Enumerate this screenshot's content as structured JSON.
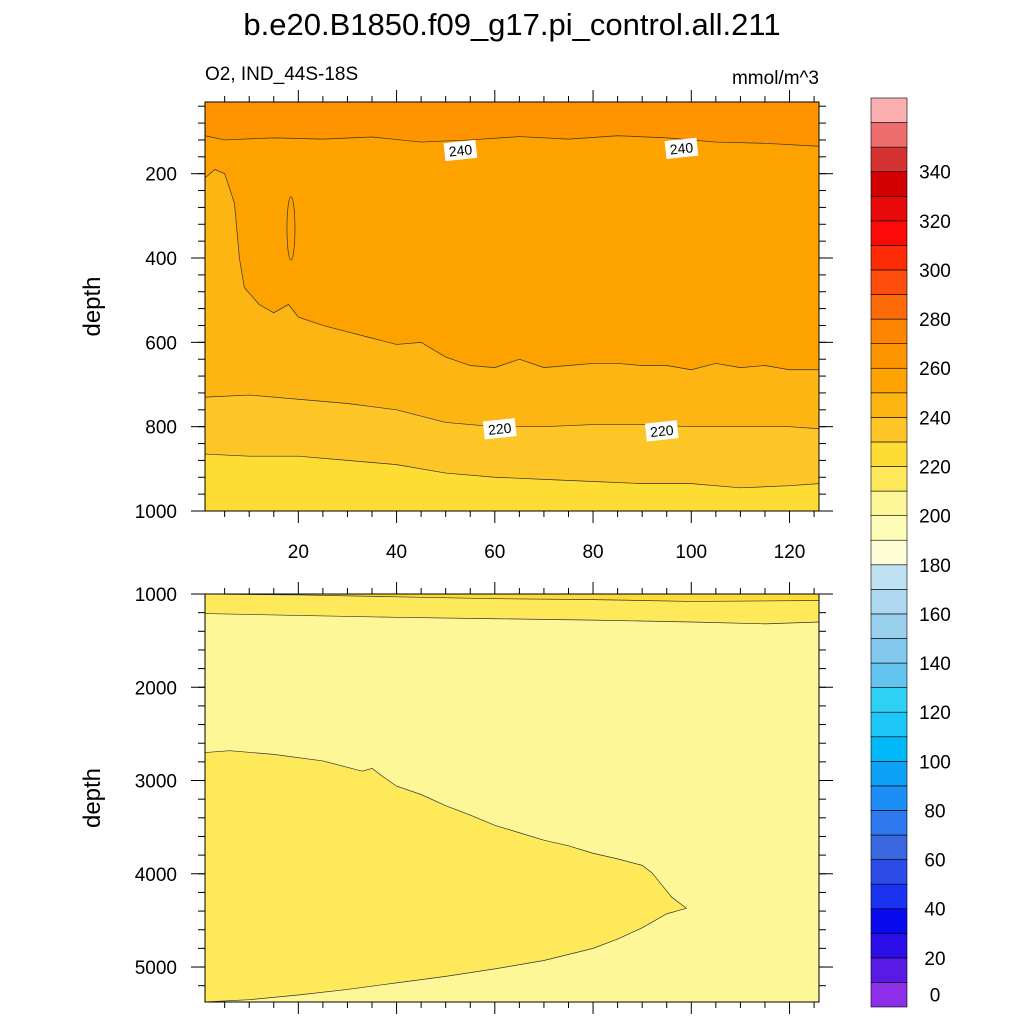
{
  "title": "b.e20.B1850.f09_g17.pi_control.all.211",
  "variable_label": "O2, IND_44S-18S",
  "units": "mmol/m^3",
  "chart_data": [
    {
      "type": "contour",
      "panel": "upper",
      "ylabel": "depth",
      "xlim": [
        1,
        126
      ],
      "ylim": [
        1000,
        30
      ],
      "y_reversed": true,
      "x_ticks": [
        20,
        40,
        60,
        80,
        100,
        120
      ],
      "y_ticks": [
        200,
        400,
        600,
        800,
        1000
      ],
      "regions": [
        {
          "range": "240-250",
          "color": "#FD9400"
        },
        {
          "range": "230-240",
          "color": "#FEA200"
        },
        {
          "range": "220-230",
          "color": "#FDB514"
        },
        {
          "range": "210-220",
          "color": "#FDC626"
        },
        {
          "range": "200-210",
          "color": "#FDDC33"
        }
      ],
      "contours": [
        {
          "level": 240,
          "x": [
            1,
            5,
            15,
            25,
            35,
            45,
            55,
            65,
            75,
            85,
            95,
            105,
            115,
            126
          ],
          "y": [
            110,
            120,
            115,
            118,
            113,
            125,
            120,
            112,
            118,
            110,
            115,
            125,
            128,
            135
          ]
        },
        {
          "level": 230,
          "x": [
            1,
            3,
            5,
            7,
            8,
            9,
            12,
            15,
            18,
            20,
            25,
            30,
            35,
            40,
            45,
            50,
            55,
            60,
            65,
            70,
            75,
            80,
            85,
            90,
            95,
            100,
            105,
            110,
            115,
            120,
            126
          ],
          "y": [
            210,
            190,
            200,
            270,
            400,
            470,
            510,
            530,
            510,
            540,
            560,
            575,
            590,
            605,
            600,
            635,
            655,
            660,
            640,
            660,
            655,
            650,
            650,
            655,
            655,
            665,
            650,
            660,
            655,
            665,
            665
          ]
        },
        {
          "level": 220,
          "x": [
            1,
            10,
            20,
            30,
            40,
            50,
            60,
            70,
            80,
            90,
            100,
            110,
            120,
            126
          ],
          "y": [
            730,
            725,
            735,
            745,
            760,
            790,
            800,
            800,
            795,
            795,
            800,
            800,
            800,
            805
          ]
        },
        {
          "level": 210,
          "x": [
            1,
            10,
            20,
            30,
            40,
            50,
            60,
            70,
            80,
            90,
            100,
            110,
            120,
            126
          ],
          "y": [
            865,
            870,
            870,
            880,
            890,
            910,
            920,
            925,
            930,
            935,
            935,
            945,
            940,
            935
          ]
        }
      ],
      "contour_labels": [
        {
          "text": "240",
          "x": 53,
          "y": 145
        },
        {
          "text": "240",
          "x": 98,
          "y": 140
        },
        {
          "text": "220",
          "x": 61,
          "y": 805
        },
        {
          "text": "220",
          "x": 94,
          "y": 810
        }
      ]
    },
    {
      "type": "contour",
      "panel": "lower",
      "ylabel": "depth",
      "xlim": [
        1,
        126
      ],
      "ylim": [
        5375,
        1000
      ],
      "y_reversed": true,
      "y_ticks": [
        1000,
        2000,
        3000,
        4000,
        5000
      ],
      "regions": [
        {
          "range": "200-210",
          "color": "#FDDC33"
        },
        {
          "range": "190-200",
          "color": "#FEE95A"
        },
        {
          "range": "180-190",
          "color": "#FEF798"
        }
      ],
      "contours": [
        {
          "level": 200,
          "x": [
            1,
            20,
            40,
            60,
            80,
            100,
            126
          ],
          "y": [
            1000,
            1010,
            1030,
            1050,
            1060,
            1080,
            1070
          ]
        },
        {
          "level": 190,
          "x": [
            1,
            20,
            40,
            60,
            80,
            100,
            115,
            126
          ],
          "y": [
            1210,
            1230,
            1250,
            1265,
            1280,
            1300,
            1320,
            1300
          ]
        },
        {
          "level": 190,
          "x": [
            1,
            6,
            15,
            25,
            33,
            35,
            37,
            40,
            45,
            50,
            55,
            60,
            65,
            70,
            75,
            80,
            85,
            90,
            92,
            94,
            96,
            99,
            95,
            90,
            85,
            80,
            70,
            60,
            50,
            40,
            30,
            20,
            10,
            1
          ],
          "y": [
            2700,
            2680,
            2720,
            2790,
            2900,
            2870,
            2950,
            3060,
            3150,
            3270,
            3370,
            3480,
            3560,
            3640,
            3700,
            3780,
            3840,
            3910,
            3990,
            4120,
            4250,
            4370,
            4430,
            4580,
            4700,
            4800,
            4930,
            5020,
            5100,
            5170,
            5240,
            5300,
            5350,
            5380
          ]
        }
      ]
    }
  ],
  "colorbar": {
    "labels": [
      "0",
      "20",
      "40",
      "60",
      "80",
      "100",
      "120",
      "140",
      "160",
      "180",
      "200",
      "220",
      "240",
      "260",
      "280",
      "300",
      "320",
      "340"
    ],
    "colors": [
      "#8D2EE8",
      "#5A1AE6",
      "#2B0EE6",
      "#0A0AF0",
      "#1A33F0",
      "#2C4CE8",
      "#3A66E0",
      "#2E78F0",
      "#1C8EF5",
      "#0EA2F6",
      "#00B8F8",
      "#1DC8F8",
      "#2ED1F3",
      "#64C4F0",
      "#83C9ED",
      "#98D0EE",
      "#AED8F0",
      "#BEE2F3",
      "#FEFED6",
      "#FEFCB9",
      "#FEF798",
      "#FEE95A",
      "#FDDC33",
      "#FDC626",
      "#FDB514",
      "#FEA200",
      "#FD9400",
      "#FD8500",
      "#FD6A0A",
      "#FD4E0E",
      "#FD2C06",
      "#FC0909",
      "#E80A0A",
      "#D30101",
      "#D53232",
      "#EE6E6E",
      "#FBAFAF"
    ]
  }
}
